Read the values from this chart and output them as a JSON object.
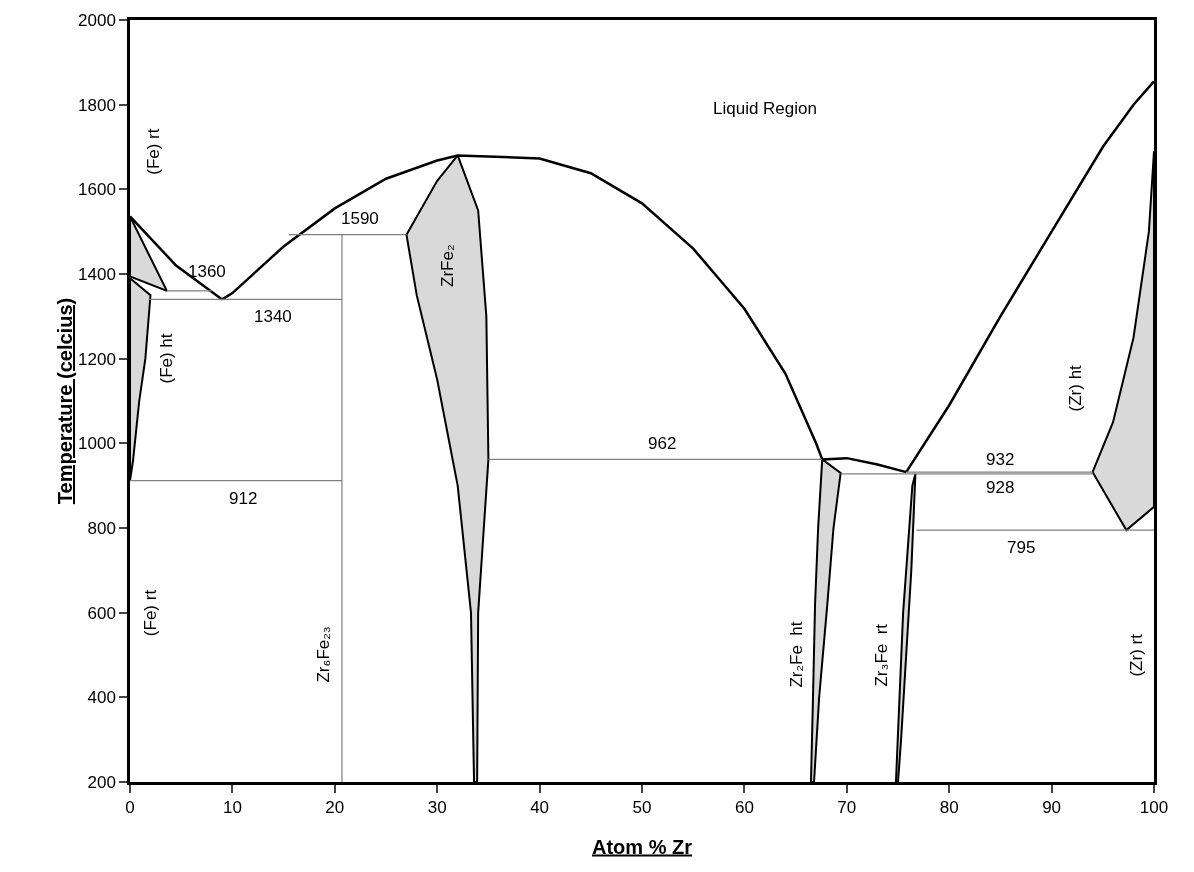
{
  "chart_data": {
    "type": "line",
    "xlabel": "Atom % Zr",
    "ylabel": "Temperature (celcius)",
    "xlim": [
      0,
      100
    ],
    "xticks": [
      0,
      10,
      20,
      30,
      40,
      50,
      60,
      70,
      80,
      90,
      100
    ],
    "ylim": [
      200,
      2000
    ],
    "yticks": [
      200,
      400,
      600,
      800,
      1000,
      1200,
      1400,
      1600,
      1800,
      2000
    ],
    "grid": false,
    "marker": "none",
    "line_style": "solid",
    "series": [
      {
        "type": "area",
        "color": "#d9d9d9",
        "x": [
          0,
          3.6,
          0,
          0
        ],
        "values": [
          1536,
          1360,
          1394,
          1536
        ]
      },
      {
        "type": "area",
        "color": "#d9d9d9",
        "x": [
          0,
          2.0,
          1.5,
          0.9,
          0.3,
          0,
          0
        ],
        "values": [
          1390,
          1350,
          1200,
          1100,
          960,
          912,
          1390
        ]
      },
      {
        "type": "area",
        "color": "#d9d9d9",
        "x": [
          27,
          28,
          30,
          32,
          33.3,
          33.6,
          33.9,
          34,
          35,
          34.8,
          34,
          32,
          30,
          27
        ],
        "values": [
          1493,
          1350,
          1150,
          900,
          600,
          200,
          200,
          600,
          962,
          1300,
          1550,
          1680,
          1620,
          1493
        ]
      },
      {
        "type": "area",
        "color": "#d9d9d9",
        "x": [
          67.6,
          69.4,
          68.7,
          68.1,
          67.3,
          66.8,
          66.5,
          66.7,
          66.9,
          67.2,
          67.6
        ],
        "values": [
          962,
          930,
          800,
          620,
          400,
          200,
          200,
          400,
          620,
          800,
          962
        ]
      },
      {
        "type": "area",
        "color": "#d9d9d9",
        "x": [
          76.7,
          76.3,
          75.3,
          75.0,
          74.8,
          75.5,
          76.4,
          76.7
        ],
        "values": [
          928,
          700,
          300,
          200,
          200,
          600,
          900,
          928
        ]
      },
      {
        "type": "area",
        "color": "#d9d9d9",
        "x": [
          94,
          96,
          98,
          99.5,
          100,
          100,
          97.3,
          94
        ],
        "values": [
          932,
          1050,
          1250,
          1500,
          1690,
          850,
          795,
          932
        ]
      },
      {
        "color": "#000000",
        "x": [
          0,
          4.5,
          9
        ],
        "values": [
          1536,
          1420,
          1340
        ]
      },
      {
        "color": "#000000",
        "x": [
          9,
          10,
          15,
          20,
          25,
          30,
          32,
          40,
          45,
          50,
          55,
          60,
          64,
          67,
          67.6
        ],
        "values": [
          1340,
          1355,
          1465,
          1555,
          1625,
          1668,
          1680,
          1673,
          1638,
          1567,
          1460,
          1318,
          1165,
          1000,
          962
        ]
      },
      {
        "color": "#000000",
        "x": [
          67.6,
          70,
          73,
          75.8
        ],
        "values": [
          962,
          965,
          950,
          932
        ]
      },
      {
        "color": "#000000",
        "x": [
          75.8,
          80,
          85,
          90,
          95,
          98,
          100
        ],
        "values": [
          932,
          1090,
          1300,
          1500,
          1700,
          1800,
          1855
        ]
      },
      {
        "color": "#808080",
        "x": [
          20.7,
          20.7
        ],
        "values": [
          200,
          1493
        ]
      },
      {
        "color": "#808080",
        "x": [
          15.5,
          27
        ],
        "values": [
          1493,
          1493
        ]
      },
      {
        "color": "#808080",
        "x": [
          3.6,
          8
        ],
        "values": [
          1360,
          1360
        ]
      },
      {
        "color": "#808080",
        "x": [
          1.8,
          20.7
        ],
        "values": [
          1340,
          1340
        ]
      },
      {
        "color": "#808080",
        "x": [
          0,
          20.7
        ],
        "values": [
          912,
          912
        ]
      },
      {
        "color": "#808080",
        "x": [
          35,
          67.6
        ],
        "values": [
          962,
          962
        ]
      },
      {
        "color": "#808080",
        "x": [
          75.8,
          94
        ],
        "values": [
          932,
          932
        ]
      },
      {
        "color": "#808080",
        "x": [
          69.4,
          94
        ],
        "values": [
          928,
          928
        ]
      },
      {
        "color": "#808080",
        "x": [
          76.8,
          100
        ],
        "values": [
          795,
          795
        ]
      }
    ],
    "annotations": [
      "Liquid Region",
      "(Fe) rt",
      "1360",
      "1590",
      "1340",
      "(Fe) ht",
      "912",
      "ZrFe₂",
      "962",
      "932",
      "928",
      "795",
      "(Zr) ht",
      "(Fe) rt",
      "Zr₆Fe₂₃",
      "Zr₂Fe  ht",
      "Zr₃Fe  rt",
      "(Zr) rt"
    ]
  }
}
